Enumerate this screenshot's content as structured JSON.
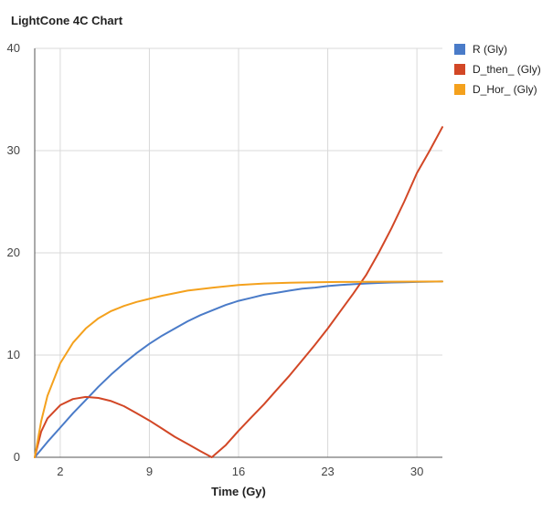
{
  "chart_data": {
    "type": "line",
    "title": "LightCone 4C Chart",
    "xlabel": "Time (Gy)",
    "ylabel": "",
    "xlim": [
      0,
      32
    ],
    "ylim": [
      0,
      40
    ],
    "x_ticks": [
      2,
      9,
      16,
      23,
      30
    ],
    "y_ticks": [
      0,
      10,
      20,
      30,
      40
    ],
    "grid": true,
    "legend_position": "right",
    "series": [
      {
        "name": "R (Gly)",
        "color": "#4a7bc8",
        "x": [
          0,
          1,
          2,
          3,
          4,
          5,
          6,
          7,
          8,
          9,
          10,
          11,
          12,
          13,
          14,
          15,
          16,
          17,
          18,
          19,
          20,
          21,
          22,
          23,
          24,
          25,
          26,
          27,
          28,
          29,
          30,
          31,
          32
        ],
        "y": [
          0,
          1.5,
          2.9,
          4.3,
          5.6,
          6.9,
          8.1,
          9.2,
          10.2,
          11.1,
          11.9,
          12.6,
          13.3,
          13.9,
          14.4,
          14.9,
          15.3,
          15.6,
          15.9,
          16.1,
          16.3,
          16.5,
          16.6,
          16.75,
          16.85,
          16.93,
          17.0,
          17.05,
          17.1,
          17.12,
          17.15,
          17.18,
          17.2
        ]
      },
      {
        "name": "D_then_ (Gly)",
        "color": "#d24726",
        "x": [
          0,
          0.5,
          1,
          2,
          3,
          4,
          5,
          6,
          7,
          8,
          9,
          10,
          11,
          12,
          13,
          13.9,
          15,
          16,
          17,
          18,
          19,
          20,
          21,
          22,
          23,
          24,
          25,
          26,
          27,
          28,
          29,
          30,
          31,
          32
        ],
        "y": [
          0,
          2.5,
          3.8,
          5.1,
          5.7,
          5.9,
          5.8,
          5.5,
          5.0,
          4.3,
          3.6,
          2.8,
          2.0,
          1.3,
          0.6,
          0,
          1.2,
          2.6,
          3.9,
          5.2,
          6.6,
          8.0,
          9.5,
          11.0,
          12.6,
          14.3,
          16.0,
          17.8,
          20.0,
          22.4,
          25.0,
          27.8,
          30.0,
          32.3
        ]
      },
      {
        "name": "D_Hor_ (Gly)",
        "color": "#f4a11d",
        "x": [
          0,
          0.5,
          1,
          2,
          3,
          4,
          5,
          6,
          7,
          8,
          9,
          10,
          12,
          14,
          16,
          18,
          20,
          22,
          24,
          26,
          28,
          30,
          32
        ],
        "y": [
          0,
          3.5,
          6.0,
          9.2,
          11.2,
          12.6,
          13.6,
          14.3,
          14.8,
          15.2,
          15.5,
          15.8,
          16.3,
          16.6,
          16.85,
          17.0,
          17.07,
          17.12,
          17.15,
          17.17,
          17.18,
          17.19,
          17.2
        ]
      }
    ]
  }
}
